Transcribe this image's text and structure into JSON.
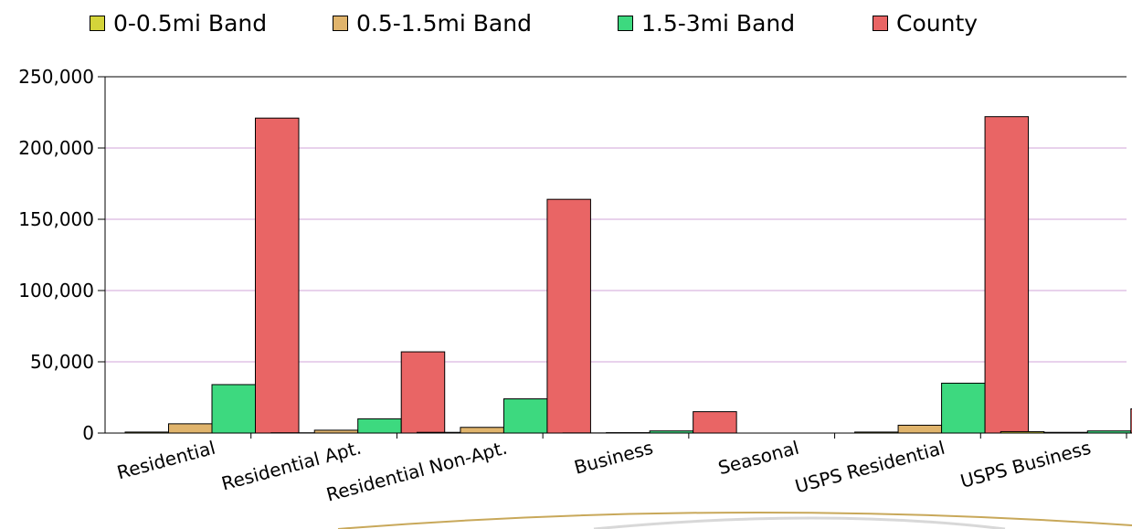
{
  "chart_data": {
    "type": "bar",
    "categories": [
      "Residential",
      "Residential Apt.",
      "Residential Non-Apt.",
      "Business",
      "Seasonal",
      "USPS Residential",
      "USPS Business"
    ],
    "series": [
      {
        "name": "0-0.5mi Band",
        "color": "#d4d43a",
        "values": [
          700,
          200,
          500,
          100,
          0,
          700,
          1000
        ]
      },
      {
        "name": "0.5-1.5mi Band",
        "color": "#e0b46c",
        "values": [
          6500,
          2000,
          4000,
          300,
          0,
          5500,
          500
        ]
      },
      {
        "name": "1.5-3mi Band",
        "color": "#3dd97f",
        "values": [
          34000,
          10000,
          24000,
          1500,
          0,
          35000,
          1500
        ]
      },
      {
        "name": "County",
        "color": "#e96565",
        "values": [
          221000,
          57000,
          164000,
          15000,
          0,
          222000,
          17000
        ]
      }
    ],
    "yticks": [
      "0",
      "50,000",
      "100,000",
      "150,000",
      "200,000",
      "250,000"
    ],
    "ylim": [
      0,
      250000
    ],
    "grid": true,
    "legend_position": "top"
  }
}
